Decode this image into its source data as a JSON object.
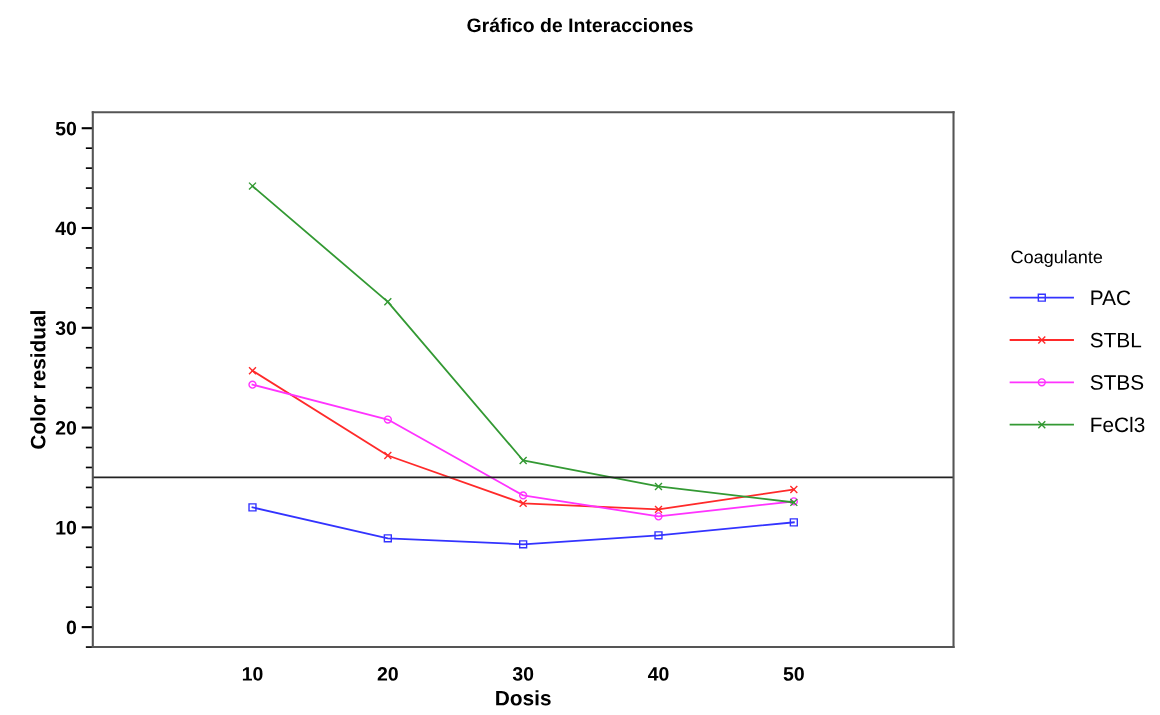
{
  "chart_data": {
    "type": "line",
    "title": "Gráfico de Interacciones",
    "xlabel": "Dosis",
    "ylabel": "Color residual",
    "legend_title": "Coagulante",
    "x": [
      10,
      20,
      30,
      40,
      50
    ],
    "series": [
      {
        "name": "PAC",
        "color": "#3333ff",
        "marker": "square",
        "values": [
          12.0,
          8.9,
          8.3,
          9.2,
          10.5
        ]
      },
      {
        "name": "STBL",
        "color": "#ff2a2a",
        "marker": "cross",
        "values": [
          25.7,
          17.2,
          12.4,
          11.8,
          13.8
        ]
      },
      {
        "name": "STBS",
        "color": "#ff33ff",
        "marker": "circle",
        "values": [
          24.3,
          20.8,
          13.2,
          11.1,
          12.6
        ]
      },
      {
        "name": "FeCl3",
        "color": "#339933",
        "marker": "cross",
        "values": [
          44.2,
          32.6,
          16.7,
          14.1,
          12.5
        ]
      }
    ],
    "ref_lines": [
      {
        "axis": "y",
        "value": 15.0,
        "color": "#222222"
      }
    ],
    "xlim": [
      -1.8,
      61.8
    ],
    "ylim": [
      -2,
      51.6
    ],
    "xticks": [
      10,
      20,
      30,
      40,
      50
    ],
    "yticks": [
      0,
      10,
      20,
      30,
      40,
      50
    ],
    "grid": false,
    "legend": "right",
    "line_style": "solid"
  }
}
